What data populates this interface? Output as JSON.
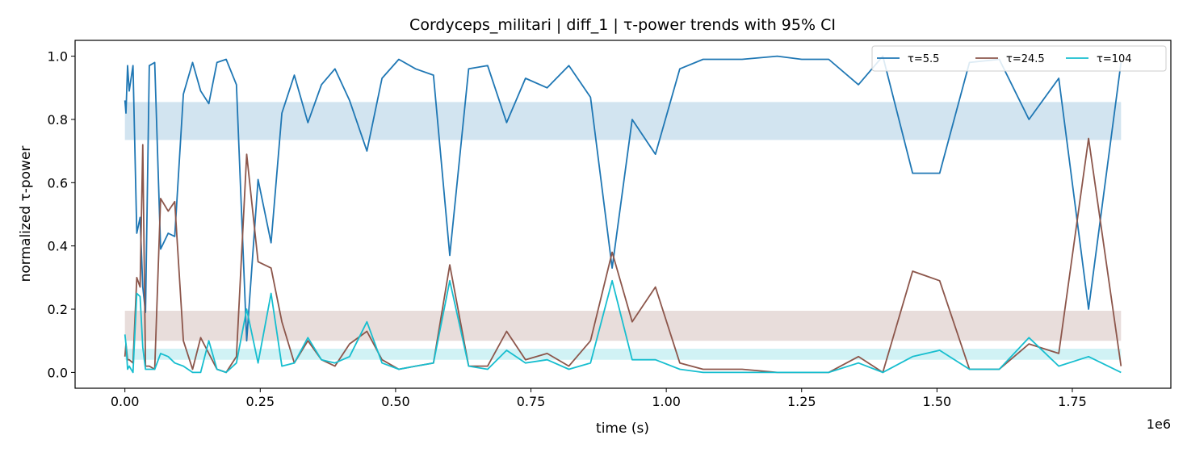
{
  "chart_data": {
    "type": "line",
    "title": "Cordyceps_militari | diff_1 | τ-power trends with 95% CI",
    "xlabel": "time (s)",
    "ylabel": "normalized τ-power",
    "x_offset_label": "1e6",
    "xlim": [
      -0.092,
      1.932
    ],
    "ylim": [
      -0.05,
      1.05
    ],
    "x_ticks": [
      0.0,
      0.25,
      0.5,
      0.75,
      1.0,
      1.25,
      1.5,
      1.75
    ],
    "x_tick_labels": [
      "0.00",
      "0.25",
      "0.50",
      "0.75",
      "1.00",
      "1.25",
      "1.50",
      "1.75"
    ],
    "y_ticks": [
      0.0,
      0.2,
      0.4,
      0.6,
      0.8,
      1.0
    ],
    "y_tick_labels": [
      "0.0",
      "0.2",
      "0.4",
      "0.6",
      "0.8",
      "1.0"
    ],
    "legend_position": "top-right",
    "x": [
      0.0,
      0.002,
      0.005,
      0.008,
      0.015,
      0.022,
      0.028,
      0.033,
      0.038,
      0.045,
      0.055,
      0.066,
      0.08,
      0.092,
      0.108,
      0.125,
      0.14,
      0.155,
      0.17,
      0.187,
      0.206,
      0.225,
      0.246,
      0.27,
      0.29,
      0.313,
      0.338,
      0.363,
      0.388,
      0.415,
      0.447,
      0.475,
      0.506,
      0.537,
      0.57,
      0.6,
      0.635,
      0.67,
      0.705,
      0.74,
      0.78,
      0.82,
      0.86,
      0.9,
      0.937,
      0.98,
      1.025,
      1.068,
      1.14,
      1.205,
      1.25,
      1.3,
      1.355,
      1.4,
      1.455,
      1.505,
      1.56,
      1.615,
      1.67,
      1.725,
      1.78,
      1.84
    ],
    "series": [
      {
        "name": "τ=5.5",
        "color": "#1f77b4",
        "values": [
          0.86,
          0.82,
          0.97,
          0.89,
          0.97,
          0.44,
          0.49,
          0.27,
          0.19,
          0.97,
          0.98,
          0.39,
          0.44,
          0.43,
          0.88,
          0.98,
          0.89,
          0.85,
          0.98,
          0.99,
          0.91,
          0.1,
          0.61,
          0.41,
          0.82,
          0.94,
          0.79,
          0.91,
          0.96,
          0.86,
          0.7,
          0.93,
          0.99,
          0.96,
          0.94,
          0.37,
          0.96,
          0.97,
          0.79,
          0.93,
          0.9,
          0.97,
          0.87,
          0.33,
          0.8,
          0.69,
          0.96,
          0.99,
          0.99,
          1.0,
          0.99,
          0.99,
          0.91,
          1.0,
          0.63,
          0.63,
          0.98,
          0.99,
          0.8,
          0.93,
          0.2,
          0.98
        ],
        "ci": [
          0.735,
          0.855
        ]
      },
      {
        "name": "τ=24.5",
        "color": "#8c564b",
        "values": [
          0.05,
          0.09,
          0.04,
          0.04,
          0.03,
          0.3,
          0.27,
          0.72,
          0.02,
          0.02,
          0.01,
          0.55,
          0.51,
          0.54,
          0.1,
          0.01,
          0.11,
          0.06,
          0.01,
          0.0,
          0.05,
          0.69,
          0.35,
          0.33,
          0.16,
          0.03,
          0.1,
          0.04,
          0.02,
          0.09,
          0.13,
          0.04,
          0.01,
          0.02,
          0.03,
          0.34,
          0.02,
          0.02,
          0.13,
          0.04,
          0.06,
          0.02,
          0.1,
          0.38,
          0.16,
          0.27,
          0.03,
          0.01,
          0.01,
          0.0,
          0.0,
          0.0,
          0.05,
          0.0,
          0.32,
          0.29,
          0.01,
          0.01,
          0.09,
          0.06,
          0.74,
          0.02
        ],
        "ci": [
          0.1,
          0.195
        ]
      },
      {
        "name": "τ=104",
        "color": "#17becf",
        "values": [
          0.12,
          0.09,
          0.01,
          0.02,
          0.0,
          0.25,
          0.24,
          0.08,
          0.01,
          0.01,
          0.01,
          0.06,
          0.05,
          0.03,
          0.02,
          0.0,
          0.0,
          0.1,
          0.01,
          0.0,
          0.03,
          0.2,
          0.03,
          0.25,
          0.02,
          0.03,
          0.11,
          0.04,
          0.03,
          0.05,
          0.16,
          0.03,
          0.01,
          0.02,
          0.03,
          0.29,
          0.02,
          0.01,
          0.07,
          0.03,
          0.04,
          0.01,
          0.03,
          0.29,
          0.04,
          0.04,
          0.01,
          0.0,
          0.0,
          0.0,
          0.0,
          0.0,
          0.03,
          0.0,
          0.05,
          0.07,
          0.01,
          0.01,
          0.11,
          0.02,
          0.05,
          0.0
        ],
        "ci": [
          0.04,
          0.075
        ]
      }
    ]
  }
}
